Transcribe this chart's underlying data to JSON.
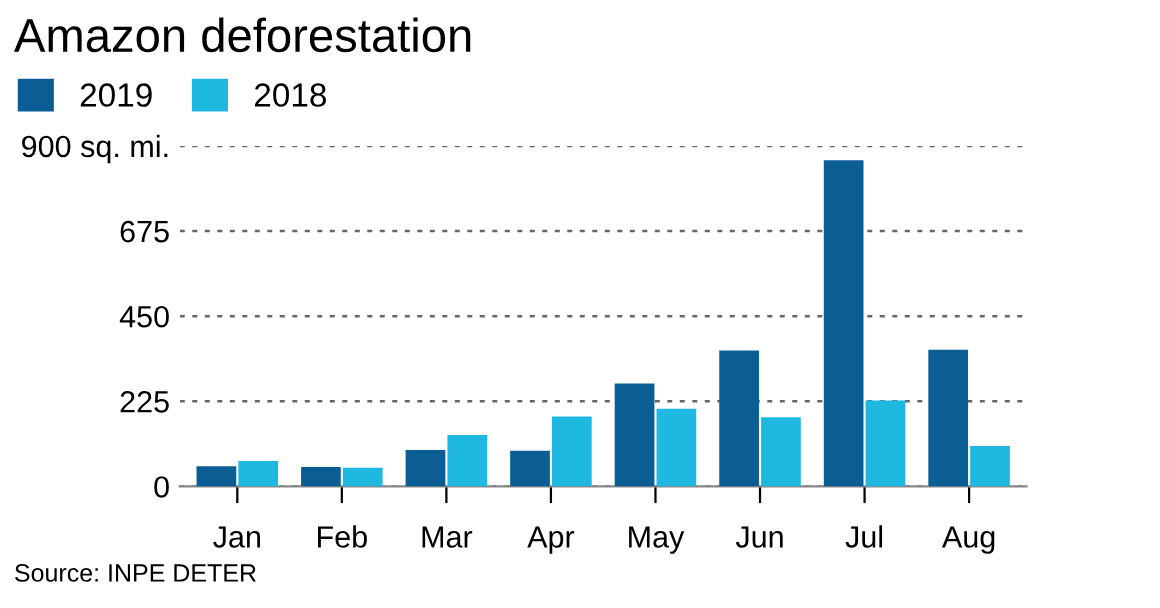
{
  "chart_data": {
    "type": "bar",
    "title": "Amazon deforestation",
    "categories": [
      "Jan",
      "Feb",
      "Mar",
      "Apr",
      "May",
      "Jun",
      "Jul",
      "Aug"
    ],
    "series": [
      {
        "name": "2019",
        "color": "#0b5e94",
        "values": [
          53,
          51,
          96,
          94,
          272,
          359,
          862,
          361
        ]
      },
      {
        "name": "2018",
        "color": "#1fb8e0",
        "values": [
          67,
          49,
          136,
          185,
          205,
          183,
          227,
          107
        ]
      }
    ],
    "ylim": [
      0,
      900
    ],
    "yticks": [
      0,
      225,
      450,
      675,
      {
        "value": 900,
        "label": "900 sq. mi."
      }
    ],
    "grid": "y",
    "legend": "top left",
    "annotations": [
      "Source: INPE DETER"
    ]
  }
}
